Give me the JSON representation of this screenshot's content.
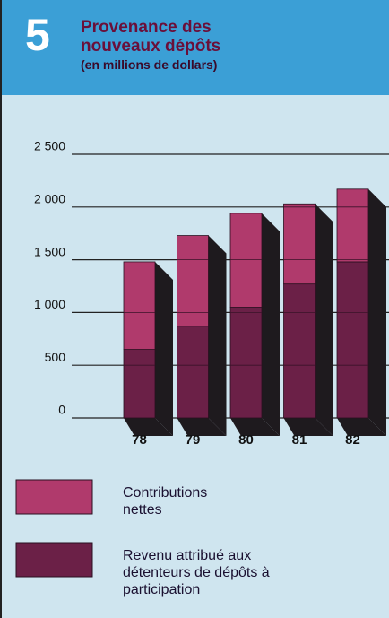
{
  "figure_number": "5",
  "chart_data": {
    "type": "stacked_bar",
    "title": "Provenance des nouveaux dépôts",
    "subtitle": "(en millions de dollars)",
    "categories": [
      "78",
      "79",
      "80",
      "81",
      "82"
    ],
    "series": [
      {
        "name": "Revenu attribué aux détenteurs de dépôts à participation",
        "color": "#6b2047",
        "values": [
          650,
          870,
          1050,
          1270,
          1480
        ]
      },
      {
        "name": "Contributions nettes",
        "color": "#b03a6c",
        "values": [
          830,
          860,
          890,
          760,
          690
        ]
      }
    ],
    "ylim": [
      0,
      2500
    ],
    "yticks": [
      {
        "value": 0,
        "label": "0"
      },
      {
        "value": 500,
        "label": "500"
      },
      {
        "value": 1000,
        "label": "1 000"
      },
      {
        "value": 1500,
        "label": "1 500"
      },
      {
        "value": 2000,
        "label": "2 000"
      },
      {
        "value": 2500,
        "label": "2 500"
      }
    ],
    "grid": true
  }
}
